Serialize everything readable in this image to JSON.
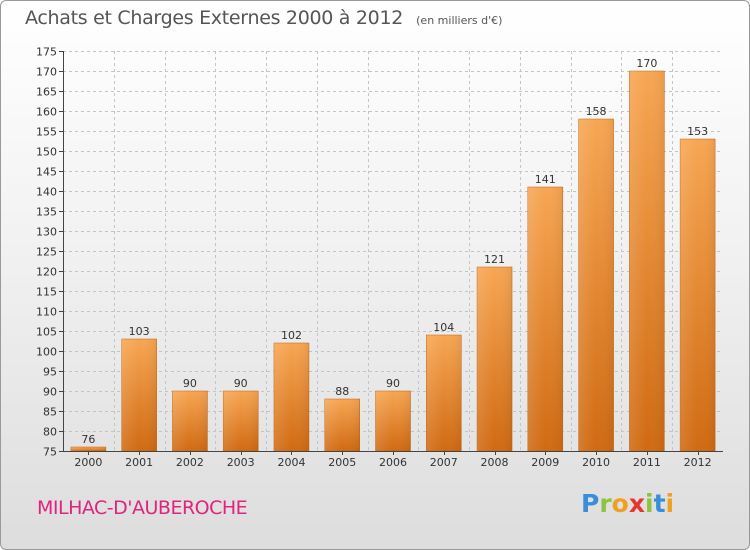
{
  "title": "Achats et Charges Externes 2000 à 2012",
  "subtitle": "(en milliers d'€)",
  "commune": "MILHAC-D'AUBEROCHE",
  "logo": {
    "text": "Proxiti",
    "colors": [
      "#3a8ed8",
      "#8bc43f",
      "#f0a020",
      "#e8352d"
    ]
  },
  "chart_data": {
    "type": "bar",
    "title": "Achats et Charges Externes 2000 à 2012",
    "subtitle": "(en milliers d'€)",
    "categories": [
      "2000",
      "2001",
      "2002",
      "2003",
      "2004",
      "2005",
      "2006",
      "2007",
      "2008",
      "2009",
      "2010",
      "2011",
      "2012"
    ],
    "values": [
      76,
      103,
      90,
      90,
      102,
      88,
      90,
      104,
      121,
      141,
      158,
      170,
      153
    ],
    "ylim": [
      75,
      175
    ],
    "yticks": [
      75,
      80,
      85,
      90,
      95,
      100,
      105,
      110,
      115,
      120,
      125,
      130,
      135,
      140,
      145,
      150,
      155,
      160,
      165,
      170,
      175
    ],
    "grid": true,
    "legend": "none",
    "colors": {
      "bar_top": "#f7a653",
      "bar_bottom": "#d06a12",
      "grid": "#c4c4c4",
      "axis": "#444444",
      "text": "#333333"
    }
  }
}
